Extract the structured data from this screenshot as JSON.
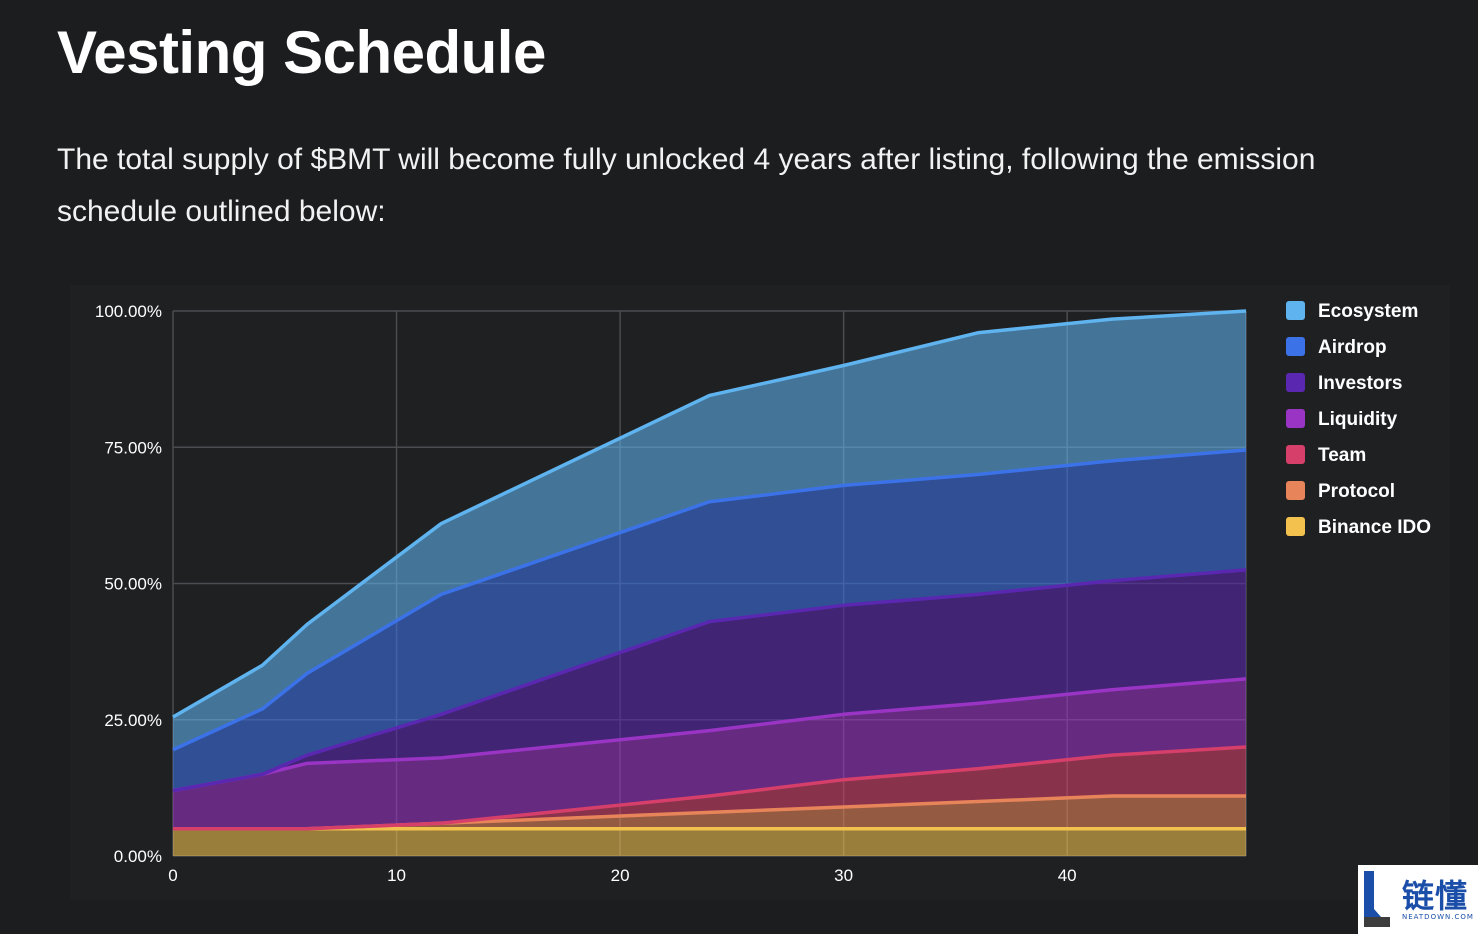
{
  "page": {
    "title": "Vesting Schedule",
    "intro": "The total supply of $BMT will become fully unlocked 4 years after listing, following the emission schedule outlined below:"
  },
  "watermark": {
    "text": "链懂",
    "subtext": "NEATDOWN.COM"
  },
  "chart_data": {
    "type": "area",
    "stacked": true,
    "title": "",
    "xlabel": "",
    "ylabel": "",
    "xlim": [
      0,
      48
    ],
    "ylim": [
      0,
      100
    ],
    "x_ticks": [
      0,
      10,
      20,
      30,
      40
    ],
    "y_ticks": [
      "0.00%",
      "25.00%",
      "50.00%",
      "75.00%",
      "100.00%"
    ],
    "grid": true,
    "legend_position": "right",
    "x": [
      0,
      4,
      6,
      12,
      24,
      30,
      36,
      42,
      48
    ],
    "series": [
      {
        "name": "Binance IDO",
        "color": "#f2c14e",
        "values": [
          5,
          5,
          5,
          5,
          5,
          5,
          5,
          5,
          5
        ]
      },
      {
        "name": "Protocol",
        "color": "#e8845a",
        "values": [
          0,
          0,
          0,
          1,
          3,
          4,
          5,
          6,
          6
        ]
      },
      {
        "name": "Team",
        "color": "#d63f6a",
        "values": [
          0,
          0,
          0,
          0,
          3,
          5,
          6,
          7.5,
          9
        ]
      },
      {
        "name": "Liquidity",
        "color": "#9a34c4",
        "values": [
          7,
          10,
          12,
          12,
          12,
          12,
          12,
          12,
          12.5
        ]
      },
      {
        "name": "Investors",
        "color": "#5a28b0",
        "values": [
          0,
          0,
          1.5,
          8,
          20,
          20,
          20,
          20,
          20
        ]
      },
      {
        "name": "Airdrop",
        "color": "#3c72e8",
        "values": [
          7.5,
          12,
          15,
          22,
          22,
          22,
          22,
          22,
          22
        ]
      },
      {
        "name": "Ecosystem",
        "color": "#5fb3ef",
        "values": [
          6,
          8,
          9,
          13,
          19.5,
          22,
          26,
          26,
          25.5
        ]
      }
    ],
    "legend_order": [
      "Ecosystem",
      "Airdrop",
      "Investors",
      "Liquidity",
      "Team",
      "Protocol",
      "Binance IDO"
    ]
  }
}
